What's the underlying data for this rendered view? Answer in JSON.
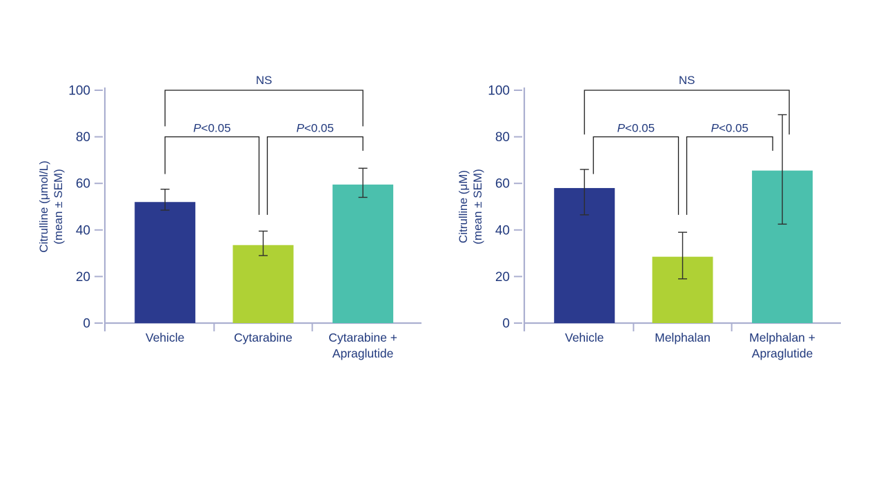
{
  "colors": {
    "background": "#FFFFFF",
    "text": "#21397D",
    "axis": "#ABAFD0",
    "error_bar": "#2E2E2E",
    "bracket": "#1A1A1A"
  },
  "chart_data": [
    {
      "type": "bar",
      "title": "",
      "xlabel": "",
      "ylabel_lines": [
        "Citrulline (μmol/L)",
        "(mean ± SEM)"
      ],
      "ylim": [
        0,
        100
      ],
      "yticks": [
        0,
        20,
        40,
        60,
        80,
        100
      ],
      "grid": false,
      "legend": "none",
      "categories": [
        [
          "Vehicle"
        ],
        [
          "Cytarabine"
        ],
        [
          "Cytarabine +",
          "Apraglutide"
        ]
      ],
      "values": [
        52,
        33.5,
        59.5
      ],
      "err_low": [
        48.5,
        29,
        54
      ],
      "err_high": [
        57.5,
        39.5,
        66.5
      ],
      "bar_colors": [
        "#2B3A8E",
        "#AFD135",
        "#4BC0AD"
      ],
      "significance": [
        {
          "groups": [
            0,
            2
          ],
          "label": "NS"
        },
        {
          "groups": [
            0,
            1
          ],
          "label": "P<0.05"
        },
        {
          "groups": [
            1,
            2
          ],
          "label": "P<0.05"
        }
      ]
    },
    {
      "type": "bar",
      "title": "",
      "xlabel": "",
      "ylabel_lines": [
        "Citrulline (μM)",
        "(mean ± SEM)"
      ],
      "ylim": [
        0,
        100
      ],
      "yticks": [
        0,
        20,
        40,
        60,
        80,
        100
      ],
      "grid": false,
      "legend": "none",
      "categories": [
        [
          "Vehicle"
        ],
        [
          "Melphalan"
        ],
        [
          "Melphalan +",
          "Apraglutide"
        ]
      ],
      "values": [
        58,
        28.5,
        65.5
      ],
      "err_low": [
        46.5,
        19,
        42.5
      ],
      "err_high": [
        66,
        39,
        89.5
      ],
      "bar_colors": [
        "#2B3A8E",
        "#AFD135",
        "#4BC0AD"
      ],
      "significance": [
        {
          "groups": [
            0,
            2
          ],
          "label": "NS"
        },
        {
          "groups": [
            0,
            1
          ],
          "label": "P<0.05"
        },
        {
          "groups": [
            1,
            2
          ],
          "label": "P<0.05"
        }
      ]
    }
  ]
}
